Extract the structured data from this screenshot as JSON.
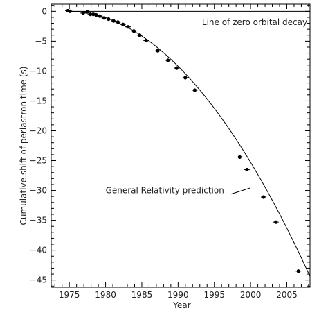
{
  "chart_data": {
    "type": "scatter",
    "xlabel": "Year",
    "ylabel": "Cumulative shift of periastron time (s)",
    "xlim": [
      1972.5,
      2008.2
    ],
    "ylim": [
      -46.2,
      1.2
    ],
    "x_ticks": [
      1975,
      1980,
      1985,
      1990,
      1995,
      2000,
      2005
    ],
    "x_tick_labels": [
      "1975",
      "1980",
      "1985",
      "1990",
      "1995",
      "2000",
      "2005"
    ],
    "y_ticks": [
      0,
      -5,
      -10,
      -15,
      -20,
      -25,
      -30,
      -35,
      -40,
      -45
    ],
    "y_tick_labels": [
      "0",
      "−5",
      "−10",
      "−15",
      "−20",
      "−25",
      "−30",
      "−35",
      "−40",
      "−45"
    ],
    "grid": false,
    "series": [
      {
        "kind": "points_with_error_bars",
        "points": [
          {
            "x": 1974.8,
            "y": 0.1
          },
          {
            "x": 1975.1,
            "y": 0.0
          },
          {
            "x": 1976.9,
            "y": -0.3
          },
          {
            "x": 1977.5,
            "y": -0.1
          },
          {
            "x": 1977.9,
            "y": -0.5
          },
          {
            "x": 1978.3,
            "y": -0.5
          },
          {
            "x": 1978.7,
            "y": -0.6
          },
          {
            "x": 1979.2,
            "y": -0.8
          },
          {
            "x": 1979.8,
            "y": -1.1
          },
          {
            "x": 1980.4,
            "y": -1.3
          },
          {
            "x": 1981.1,
            "y": -1.6
          },
          {
            "x": 1981.7,
            "y": -1.8
          },
          {
            "x": 1982.4,
            "y": -2.2
          },
          {
            "x": 1983.1,
            "y": -2.6
          },
          {
            "x": 1983.9,
            "y": -3.3
          },
          {
            "x": 1984.7,
            "y": -4.0
          },
          {
            "x": 1985.6,
            "y": -4.9
          },
          {
            "x": 1987.2,
            "y": -6.6
          },
          {
            "x": 1988.6,
            "y": -8.2
          },
          {
            "x": 1989.8,
            "y": -9.5
          },
          {
            "x": 1991.0,
            "y": -11.1
          },
          {
            "x": 1992.3,
            "y": -13.2
          },
          {
            "x": 1998.5,
            "y": -24.4
          },
          {
            "x": 1999.5,
            "y": -26.5
          },
          {
            "x": 2001.8,
            "y": -31.1
          },
          {
            "x": 2003.5,
            "y": -35.3
          },
          {
            "x": 2006.6,
            "y": -43.5
          }
        ]
      },
      {
        "kind": "curve",
        "x_start": 1974.8,
        "x_end": 2008.2,
        "model": "y = -0.0398 * (x - 1974.8)^2"
      },
      {
        "kind": "horizontal_line",
        "y": 0
      }
    ],
    "annotations": [
      {
        "text": "Line of zero orbital decay",
        "x": 1993.3,
        "y": -1.8
      },
      {
        "text": "General Relativity prediction",
        "x": 1980.0,
        "y": -30.0,
        "pointer_to": {
          "x": 1999.9,
          "y": -29.6
        }
      }
    ]
  }
}
